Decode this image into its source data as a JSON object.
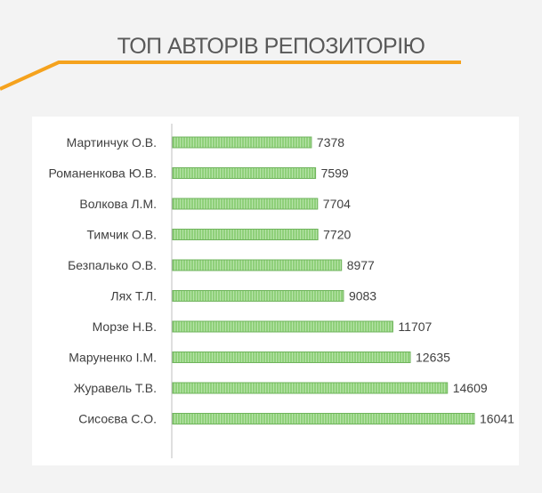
{
  "slide": {
    "title": "ТОП АВТОРІВ РЕПОЗИТОРІЮ"
  },
  "colors": {
    "background": "#f3f3f3",
    "accent": "#f5a21d",
    "bar_fill": "#8fd07a",
    "bar_stroke": "#6fb35c",
    "axis": "#bfbfbf",
    "text": "#404040"
  },
  "chart_data": {
    "type": "bar",
    "orientation": "horizontal",
    "categories": [
      "Мартинчук О.В.",
      "Романенкова Ю.В.",
      "Волкова Л.М.",
      "Тимчик О.В.",
      "Безпалько О.В.",
      "Лях Т.Л.",
      "Морзе Н.В.",
      "Маруненко І.М.",
      "Журавель Т.В.",
      "Сисоєва С.О."
    ],
    "values": [
      7378,
      7599,
      7704,
      7720,
      8977,
      9083,
      11707,
      12635,
      14609,
      16041
    ],
    "data_labels": true,
    "xlim": [
      0,
      16041
    ],
    "grid": false,
    "legend": "none"
  }
}
